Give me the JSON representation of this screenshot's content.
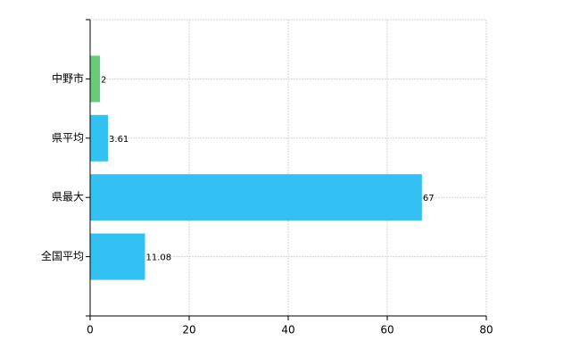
{
  "chart_data": {
    "type": "hbar",
    "categories": [
      "中野市",
      "県平均",
      "県最大",
      "全国平均"
    ],
    "values": [
      2,
      3.61,
      67,
      11.08
    ],
    "colors": [
      "#66cc77",
      "#33c0f2",
      "#33c0f2",
      "#33c0f2"
    ],
    "xlim": [
      0,
      80
    ],
    "xticks": [
      0,
      20,
      40,
      60,
      80
    ],
    "grid": true
  }
}
